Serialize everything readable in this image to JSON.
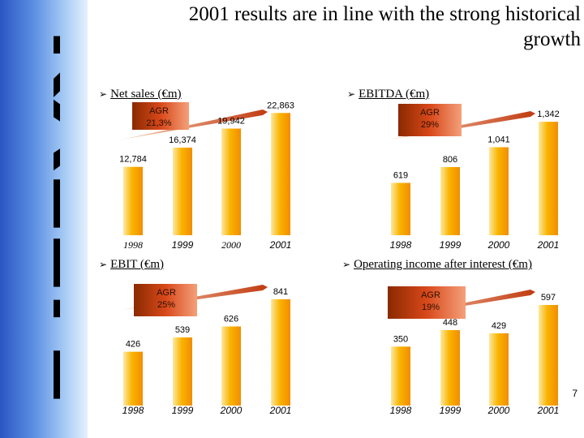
{
  "slide": {
    "title": "2001 results are in line with the strong historical growth",
    "page_number": "7",
    "logo_text": "RALLYE"
  },
  "chart_data": [
    {
      "type": "bar",
      "title": "Net sales (€m)",
      "categories": [
        "1998",
        "1999",
        "2000",
        "2001"
      ],
      "values": [
        12784,
        16374,
        19942,
        22863
      ],
      "value_labels": [
        "12,784",
        "16,374",
        "19,942",
        "22,863"
      ],
      "agr_label": [
        "AGR",
        "21,3%"
      ],
      "ylim": [
        0,
        27000
      ]
    },
    {
      "type": "bar",
      "title": "EBITDA (€m)",
      "categories": [
        "1998",
        "1999",
        "2000",
        "2001"
      ],
      "values": [
        619,
        806,
        1041,
        1342
      ],
      "value_labels": [
        "619",
        "806",
        "1,041",
        "1,342"
      ],
      "agr_label": [
        "AGR",
        "29%"
      ],
      "ylim": [
        0,
        1420
      ]
    },
    {
      "type": "bar",
      "title": "EBIT (€m)",
      "categories": [
        "1998",
        "1999",
        "2000",
        "2001"
      ],
      "values": [
        426,
        539,
        626,
        841
      ],
      "value_labels": [
        "426",
        "539",
        "626",
        "841"
      ],
      "agr_label": [
        "AGR",
        "25%"
      ],
      "ylim": [
        0,
        950
      ]
    },
    {
      "type": "bar",
      "title": "Operating income after interest (€m)",
      "categories": [
        "1998",
        "1999",
        "2000",
        "2001"
      ],
      "values": [
        350,
        448,
        429,
        597
      ],
      "value_labels": [
        "350",
        "448",
        "429",
        "597"
      ],
      "agr_label": [
        "AGR",
        "19%"
      ],
      "ylim": [
        0,
        650
      ]
    }
  ]
}
